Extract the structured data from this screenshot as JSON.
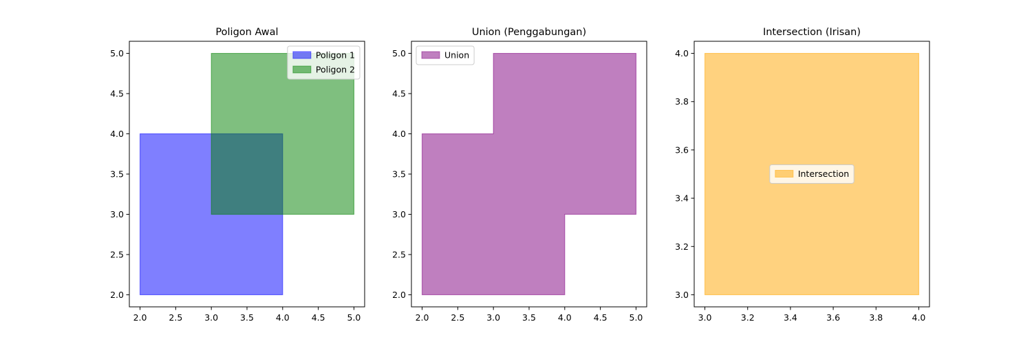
{
  "chart_data": [
    {
      "type": "area",
      "title": "Poligon Awal",
      "xlim": [
        1.85,
        5.15
      ],
      "ylim": [
        1.85,
        5.15
      ],
      "xticks": [
        2.0,
        2.5,
        3.0,
        3.5,
        4.0,
        4.5,
        5.0
      ],
      "yticks": [
        2.0,
        2.5,
        3.0,
        3.5,
        4.0,
        4.5,
        5.0
      ],
      "xtick_labels": [
        "2.0",
        "2.5",
        "3.0",
        "3.5",
        "4.0",
        "4.5",
        "5.0"
      ],
      "ytick_labels": [
        "2.0",
        "2.5",
        "3.0",
        "3.5",
        "4.0",
        "4.5",
        "5.0"
      ],
      "legend": "upper right",
      "series": [
        {
          "name": "Poligon 1",
          "color": "#0000ff",
          "alpha": 0.5,
          "points": [
            [
              2,
              2
            ],
            [
              4,
              2
            ],
            [
              4,
              4
            ],
            [
              2,
              4
            ]
          ]
        },
        {
          "name": "Poligon 2",
          "color": "#008000",
          "alpha": 0.5,
          "points": [
            [
              3,
              3
            ],
            [
              5,
              3
            ],
            [
              5,
              5
            ],
            [
              3,
              5
            ]
          ]
        }
      ]
    },
    {
      "type": "area",
      "title": "Union (Penggabungan)",
      "xlim": [
        1.85,
        5.15
      ],
      "ylim": [
        1.85,
        5.15
      ],
      "xticks": [
        2.0,
        2.5,
        3.0,
        3.5,
        4.0,
        4.5,
        5.0
      ],
      "yticks": [
        2.0,
        2.5,
        3.0,
        3.5,
        4.0,
        4.5,
        5.0
      ],
      "xtick_labels": [
        "2.0",
        "2.5",
        "3.0",
        "3.5",
        "4.0",
        "4.5",
        "5.0"
      ],
      "ytick_labels": [
        "2.0",
        "2.5",
        "3.0",
        "3.5",
        "4.0",
        "4.5",
        "5.0"
      ],
      "legend": "upper left",
      "series": [
        {
          "name": "Union",
          "color": "#800080",
          "alpha": 0.5,
          "points": [
            [
              2,
              2
            ],
            [
              4,
              2
            ],
            [
              4,
              3
            ],
            [
              5,
              3
            ],
            [
              5,
              5
            ],
            [
              3,
              5
            ],
            [
              3,
              4
            ],
            [
              2,
              4
            ]
          ]
        }
      ]
    },
    {
      "type": "area",
      "title": "Intersection (Irisan)",
      "xlim": [
        2.95,
        4.05
      ],
      "ylim": [
        2.95,
        4.05
      ],
      "xticks": [
        3.0,
        3.2,
        3.4,
        3.6,
        3.8,
        4.0
      ],
      "yticks": [
        3.0,
        3.2,
        3.4,
        3.6,
        3.8,
        4.0
      ],
      "xtick_labels": [
        "3.0",
        "3.2",
        "3.4",
        "3.6",
        "3.8",
        "4.0"
      ],
      "ytick_labels": [
        "3.0",
        "3.2",
        "3.4",
        "3.6",
        "3.8",
        "4.0"
      ],
      "legend": "center",
      "series": [
        {
          "name": "Intersection",
          "color": "#ffa500",
          "alpha": 0.5,
          "points": [
            [
              3,
              3
            ],
            [
              4,
              3
            ],
            [
              4,
              4
            ],
            [
              3,
              4
            ]
          ]
        }
      ]
    }
  ]
}
